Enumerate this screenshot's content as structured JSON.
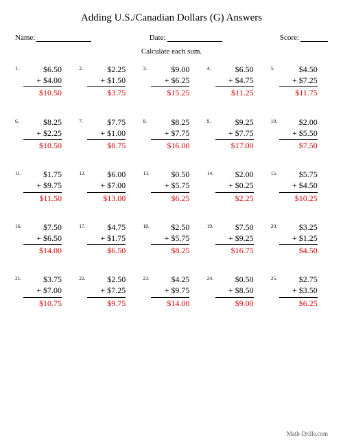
{
  "title": "Adding U.S./Canadian Dollars (G) Answers",
  "labels": {
    "name": "Name:",
    "date": "Date:",
    "score": "Score:"
  },
  "instruction": "Calculate each sum.",
  "footer": "Math-Drills.com",
  "colors": {
    "answer": "#d00000",
    "text": "#000000",
    "bg": "#ffffff"
  },
  "problems": [
    {
      "n": "1.",
      "a": "$6.50",
      "b": "+ $4.00",
      "ans": "$10.50"
    },
    {
      "n": "2.",
      "a": "$2.25",
      "b": "+ $1.50",
      "ans": "$3.75"
    },
    {
      "n": "3.",
      "a": "$9.00",
      "b": "+ $6.25",
      "ans": "$15.25"
    },
    {
      "n": "4.",
      "a": "$6.50",
      "b": "+ $4.75",
      "ans": "$11.25"
    },
    {
      "n": "5.",
      "a": "$4.50",
      "b": "+ $7.25",
      "ans": "$11.75"
    },
    {
      "n": "6.",
      "a": "$8.25",
      "b": "+ $2.25",
      "ans": "$10.50"
    },
    {
      "n": "7.",
      "a": "$7.75",
      "b": "+ $1.00",
      "ans": "$8.75"
    },
    {
      "n": "8.",
      "a": "$8.25",
      "b": "+ $7.75",
      "ans": "$16.00"
    },
    {
      "n": "9.",
      "a": "$9.25",
      "b": "+ $7.75",
      "ans": "$17.00"
    },
    {
      "n": "10.",
      "a": "$2.00",
      "b": "+ $5.50",
      "ans": "$7.50"
    },
    {
      "n": "11.",
      "a": "$1.75",
      "b": "+ $9.75",
      "ans": "$11.50"
    },
    {
      "n": "12.",
      "a": "$6.00",
      "b": "+ $7.00",
      "ans": "$13.00"
    },
    {
      "n": "13.",
      "a": "$0.50",
      "b": "+ $5.75",
      "ans": "$6.25"
    },
    {
      "n": "14.",
      "a": "$2.00",
      "b": "+ $0.25",
      "ans": "$2.25"
    },
    {
      "n": "15.",
      "a": "$5.75",
      "b": "+ $4.50",
      "ans": "$10.25"
    },
    {
      "n": "16.",
      "a": "$7.50",
      "b": "+ $6.50",
      "ans": "$14.00"
    },
    {
      "n": "17.",
      "a": "$4.75",
      "b": "+ $1.75",
      "ans": "$6.50"
    },
    {
      "n": "18.",
      "a": "$2.50",
      "b": "+ $5.75",
      "ans": "$8.25"
    },
    {
      "n": "19.",
      "a": "$7.50",
      "b": "+ $9.25",
      "ans": "$16.75"
    },
    {
      "n": "20.",
      "a": "$3.25",
      "b": "+ $1.25",
      "ans": "$4.50"
    },
    {
      "n": "21.",
      "a": "$3.75",
      "b": "+ $7.00",
      "ans": "$10.75"
    },
    {
      "n": "22.",
      "a": "$2.50",
      "b": "+ $7.25",
      "ans": "$9.75"
    },
    {
      "n": "23.",
      "a": "$4.25",
      "b": "+ $9.75",
      "ans": "$14.00"
    },
    {
      "n": "24.",
      "a": "$0.50",
      "b": "+ $8.50",
      "ans": "$9.00"
    },
    {
      "n": "25.",
      "a": "$2.75",
      "b": "+ $3.50",
      "ans": "$6.25"
    }
  ]
}
